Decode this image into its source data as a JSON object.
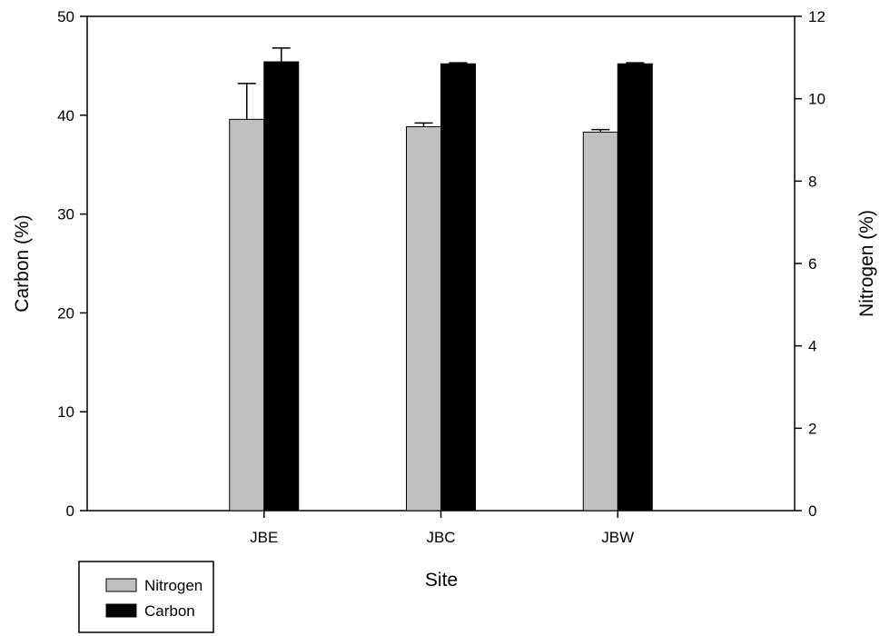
{
  "chart_data": {
    "type": "bar",
    "xlabel": "Site",
    "ylabel_left": "Carbon (%)",
    "ylabel_right": "Nitrogen (%)",
    "categories": [
      "JBE",
      "JBC",
      "JBW"
    ],
    "ylim_left": [
      0,
      50
    ],
    "ylim_right": [
      0,
      12
    ],
    "yticks_left": [
      "0",
      "10",
      "20",
      "30",
      "40",
      "50"
    ],
    "yticks_right": [
      "0",
      "2",
      "4",
      "6",
      "8",
      "10",
      "12"
    ],
    "grid": false,
    "legend_position": "bottom-left, outside plot",
    "series": [
      {
        "name": "Nitrogen",
        "axis": "right",
        "color": "#c0c0c0",
        "values": [
          9.5,
          9.32,
          9.19
        ],
        "error": [
          0.87,
          0.09,
          0.06
        ]
      },
      {
        "name": "Carbon",
        "axis": "left",
        "color": "#000000",
        "values": [
          45.4,
          45.2,
          45.2
        ],
        "error": [
          1.4,
          0.1,
          0.1
        ]
      }
    ]
  }
}
